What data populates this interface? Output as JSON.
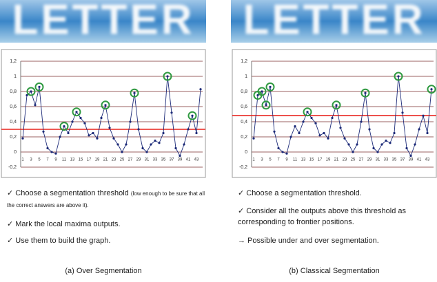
{
  "chart_data": [
    {
      "type": "line",
      "categories": [
        1,
        null,
        3,
        null,
        5,
        null,
        7,
        null,
        9,
        null,
        11,
        null,
        13,
        null,
        15,
        null,
        17,
        null,
        19,
        null,
        21,
        null,
        23,
        null,
        25,
        null,
        27,
        null,
        29,
        null,
        31,
        null,
        33,
        null,
        35,
        null,
        37,
        null,
        39,
        null,
        41,
        null,
        43,
        null
      ],
      "values": [
        0.18,
        0.75,
        0.8,
        0.62,
        0.86,
        0.27,
        0.05,
        0.0,
        -0.02,
        0.2,
        0.34,
        0.25,
        0.4,
        0.53,
        0.45,
        0.38,
        0.22,
        0.25,
        0.18,
        0.45,
        0.62,
        0.32,
        0.18,
        0.1,
        0.0,
        0.1,
        0.4,
        0.78,
        0.3,
        0.05,
        0.0,
        0.1,
        0.15,
        0.12,
        0.25,
        1.0,
        0.52,
        0.05,
        -0.05,
        0.1,
        0.3,
        0.48,
        0.25,
        0.83
      ],
      "color": "#1c2a78",
      "ylim": [
        -0.2,
        1.2
      ],
      "yticks": [
        {
          "value": -0.2,
          "label": "-0,2"
        },
        0,
        {
          "value": 0.2,
          "label": "0,2"
        },
        {
          "value": 0.4,
          "label": "0,4"
        },
        {
          "value": 0.6,
          "label": "0,6"
        },
        {
          "value": 0.8,
          "label": "0,8"
        },
        1,
        {
          "value": 1.2,
          "label": "1,2"
        }
      ],
      "grid": true,
      "threshold": 0.3,
      "threshold_color": "#e8201a",
      "circled": [
        2,
        4,
        10,
        13,
        20,
        27,
        35,
        41
      ],
      "circle_color": "#2f9a40"
    },
    {
      "type": "line",
      "categories": [
        1,
        null,
        3,
        null,
        5,
        null,
        7,
        null,
        9,
        null,
        11,
        null,
        13,
        null,
        15,
        null,
        17,
        null,
        19,
        null,
        21,
        null,
        23,
        null,
        25,
        null,
        27,
        null,
        29,
        null,
        31,
        null,
        33,
        null,
        35,
        null,
        37,
        null,
        39,
        null,
        41,
        null,
        43,
        null
      ],
      "values": [
        0.18,
        0.75,
        0.8,
        0.62,
        0.86,
        0.27,
        0.05,
        0.0,
        -0.02,
        0.2,
        0.34,
        0.25,
        0.4,
        0.53,
        0.45,
        0.38,
        0.22,
        0.25,
        0.18,
        0.45,
        0.62,
        0.32,
        0.18,
        0.1,
        0.0,
        0.1,
        0.4,
        0.78,
        0.3,
        0.05,
        0.0,
        0.1,
        0.15,
        0.12,
        0.25,
        1.0,
        0.52,
        0.05,
        -0.05,
        0.1,
        0.3,
        0.48,
        0.25,
        0.83
      ],
      "color": "#1c2a78",
      "ylim": [
        -0.2,
        1.2
      ],
      "yticks": [
        {
          "value": -0.2,
          "label": "-0,2"
        },
        0,
        {
          "value": 0.2,
          "label": "0,2"
        },
        {
          "value": 0.4,
          "label": "0,4"
        },
        {
          "value": 0.6,
          "label": "0,6"
        },
        {
          "value": 0.8,
          "label": "0,8"
        },
        1,
        {
          "value": 1.2,
          "label": "1,2"
        }
      ],
      "grid": true,
      "threshold": 0.48,
      "threshold_color": "#e8201a",
      "circled": [
        1,
        2,
        3,
        4,
        13,
        20,
        27,
        35,
        43
      ],
      "circle_color": "#2f9a40"
    }
  ],
  "panels": [
    {
      "image_text": "LETTER",
      "bullets": [
        {
          "text": "✓ Choose a segmentation threshold",
          "note": "(low enough to be sure that all the correct answers are above it)."
        },
        {
          "text": "✓ Mark the local maxima outputs."
        },
        {
          "text": "✓ Use them to build the graph."
        }
      ],
      "caption": "(a) Over Segmentation"
    },
    {
      "image_text": "LETTER",
      "bullets": [
        {
          "text": "✓ Choose a segmentation threshold."
        },
        {
          "text": "✓ Consider all the outputs above this threshold as corresponding to frontier positions."
        },
        {
          "text": "→ Possible under and over segmentation."
        }
      ],
      "caption": "(b) Classical Segmentation"
    }
  ]
}
